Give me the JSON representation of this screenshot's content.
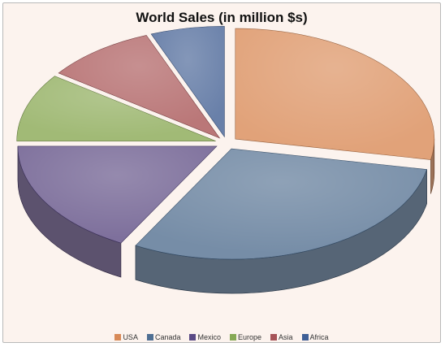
{
  "chart_data": {
    "type": "pie",
    "title": "World Sales (in million $s)",
    "style": "3d-exploded-transparent",
    "categories": [
      "USA",
      "Canada",
      "Mexico",
      "Europe",
      "Asia",
      "Africa"
    ],
    "values": [
      28,
      30,
      17,
      10,
      9,
      6
    ],
    "colors": [
      "#d88a58",
      "#4f6f93",
      "#5a4a85",
      "#86a955",
      "#a65357",
      "#3f5f96"
    ],
    "legend_position": "bottom"
  }
}
